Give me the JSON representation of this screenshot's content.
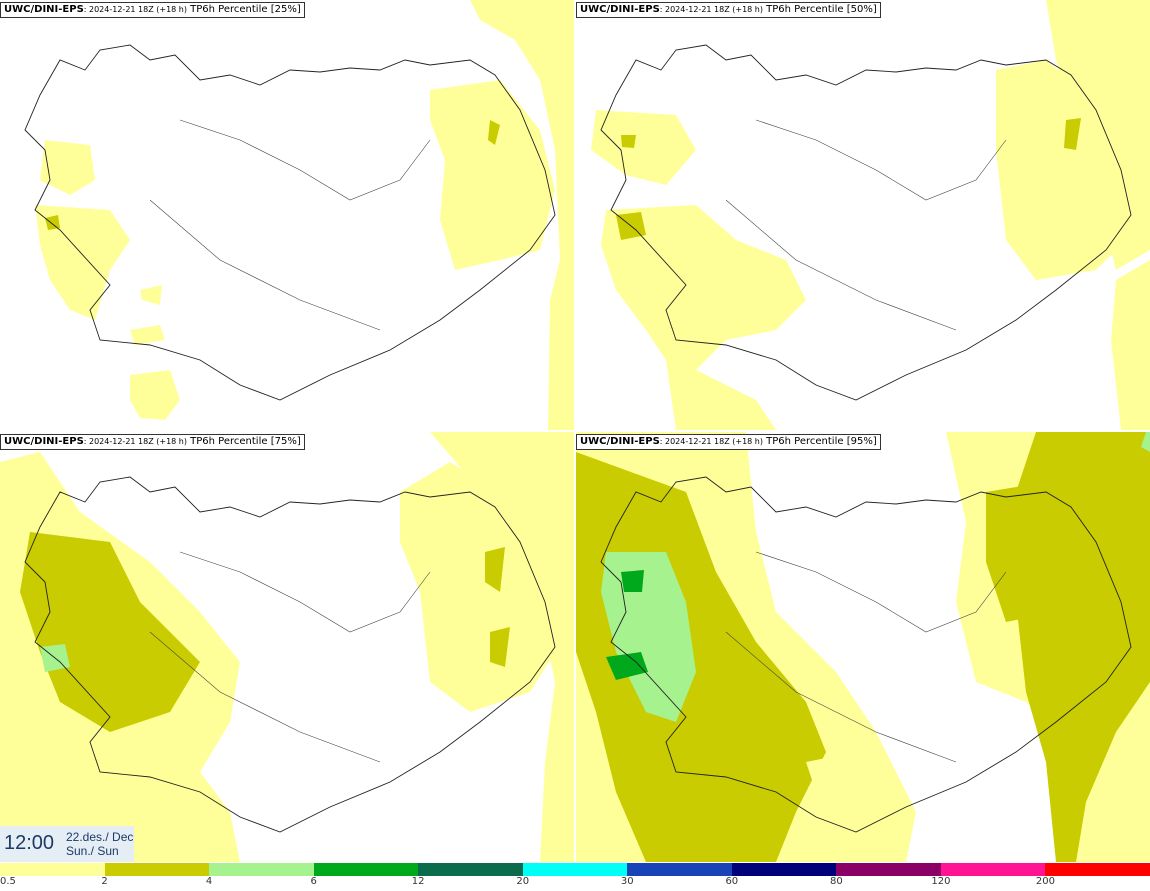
{
  "panels": [
    {
      "model": "UWC/DINI-EPS",
      "run": ": 2024-12-21 18Z (+18 h)",
      "label": " TP6h Percentile [25%]"
    },
    {
      "model": "UWC/DINI-EPS",
      "run": ": 2024-12-21 18Z (+18 h)",
      "label": " TP6h Percentile [50%]"
    },
    {
      "model": "UWC/DINI-EPS",
      "run": ": 2024-12-21 18Z (+18 h)",
      "label": " TP6h Percentile [75%]"
    },
    {
      "model": "UWC/DINI-EPS",
      "run": ": 2024-12-21 18Z (+18 h)",
      "label": " TP6h Percentile [95%]"
    }
  ],
  "valid_time": {
    "time": "12:00",
    "date_line1": "22.des./ Dec",
    "date_line2": "Sun./ Sun"
  },
  "colorbar": {
    "colors": [
      "#ffff99",
      "#c8cc00",
      "#a6f28f",
      "#00a81c",
      "#0a6b4d",
      "#00fff5",
      "#1a43b8",
      "#00007a",
      "#8a0066",
      "#ff1493",
      "#ff0000"
    ],
    "labels": [
      "0.5",
      "2",
      "4",
      "6",
      "12",
      "20",
      "30",
      "60",
      "80",
      "120",
      "200"
    ]
  }
}
